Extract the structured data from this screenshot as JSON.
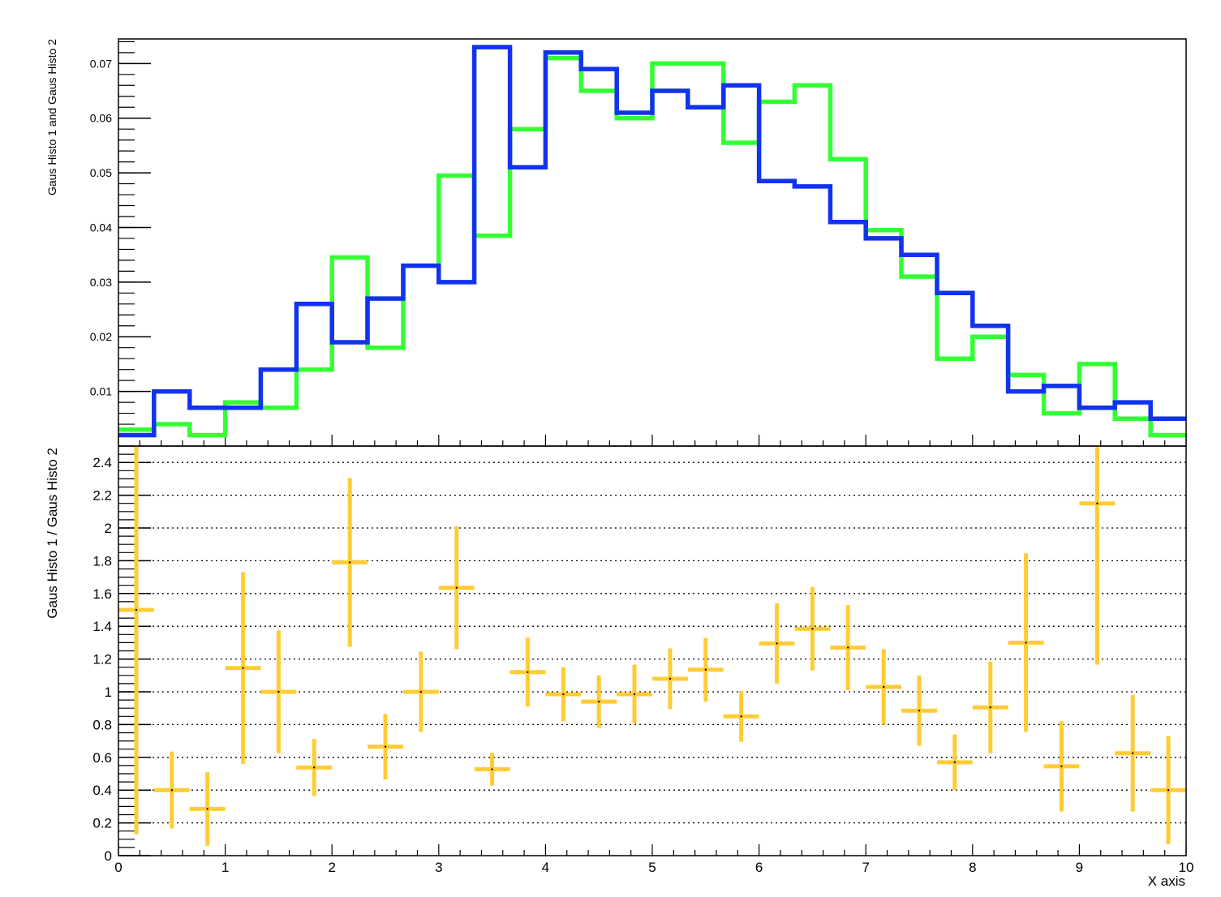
{
  "chart_data": [
    {
      "type": "histogram-step",
      "ylabel": "Gaus Histo 1 and Gaus Histo 2",
      "xlim": [
        0,
        10
      ],
      "ylim": [
        0,
        0.0745
      ],
      "yticks": [
        0.01,
        0.02,
        0.03,
        0.04,
        0.05,
        0.06,
        0.07
      ],
      "ytick_labels": [
        "0.01",
        "0.02",
        "0.03",
        "0.04",
        "0.05",
        "0.06",
        "0.07"
      ],
      "bin_edges": [
        0,
        0.333,
        0.667,
        1,
        1.333,
        1.667,
        2,
        2.333,
        2.667,
        3,
        3.333,
        3.667,
        4,
        4.333,
        4.667,
        5,
        5.333,
        5.667,
        6,
        6.333,
        6.667,
        7,
        7.333,
        7.667,
        8,
        8.333,
        8.667,
        9,
        9.333,
        9.667,
        10
      ],
      "series": [
        {
          "color": "#33ff33",
          "values": [
            0.003,
            0.004,
            0.002,
            0.008,
            0.007,
            0.014,
            0.0345,
            0.018,
            0.033,
            0.0495,
            0.0385,
            0.058,
            0.071,
            0.065,
            0.06,
            0.07,
            0.07,
            0.0555,
            0.063,
            0.066,
            0.0525,
            0.0395,
            0.031,
            0.016,
            0.02,
            0.013,
            0.006,
            0.015,
            0.005,
            0.002
          ]
        },
        {
          "color": "#1133ee",
          "values": [
            0.002,
            0.01,
            0.007,
            0.007,
            0.014,
            0.026,
            0.019,
            0.027,
            0.033,
            0.03,
            0.073,
            0.051,
            0.072,
            0.069,
            0.061,
            0.065,
            0.062,
            0.066,
            0.0485,
            0.0475,
            0.041,
            0.038,
            0.035,
            0.028,
            0.022,
            0.01,
            0.011,
            0.007,
            0.008,
            0.005
          ]
        }
      ]
    },
    {
      "type": "errorbar",
      "ylabel": "Gaus Histo 1 / Gaus Histo 2",
      "xlabel": "X axis",
      "xlim": [
        0,
        10
      ],
      "ylim": [
        0,
        2.5
      ],
      "grid": "y-dotted",
      "color": "#ffcc33",
      "xticks": [
        0,
        1,
        2,
        3,
        4,
        5,
        6,
        7,
        8,
        9,
        10
      ],
      "xtick_labels": [
        "0",
        "1",
        "2",
        "3",
        "4",
        "5",
        "6",
        "7",
        "8",
        "9",
        "10"
      ],
      "yticks": [
        0,
        0.2,
        0.4,
        0.6,
        0.8,
        1,
        1.2,
        1.4,
        1.6,
        1.8,
        2,
        2.2,
        2.4
      ],
      "ytick_labels": [
        "0",
        "0.2",
        "0.4",
        "0.6",
        "0.8",
        "1",
        "1.2",
        "1.4",
        "1.6",
        "1.8",
        "2",
        "2.2",
        "2.4"
      ],
      "x": [
        0.167,
        0.5,
        0.833,
        1.167,
        1.5,
        1.833,
        2.167,
        2.5,
        2.833,
        3.167,
        3.5,
        3.833,
        4.167,
        4.5,
        4.833,
        5.167,
        5.5,
        5.833,
        6.167,
        6.5,
        6.833,
        7.167,
        7.5,
        7.833,
        8.167,
        8.5,
        8.833,
        9.167,
        9.5,
        9.833
      ],
      "y": [
        1.5,
        0.4,
        0.285,
        1.145,
        1.0,
        0.538,
        1.79,
        0.665,
        1.0,
        1.635,
        0.527,
        1.12,
        0.985,
        0.94,
        0.985,
        1.08,
        1.135,
        0.85,
        1.295,
        1.385,
        1.27,
        1.03,
        0.885,
        0.57,
        0.905,
        1.3,
        0.545,
        2.15,
        0.625,
        0.4
      ],
      "yerr": [
        1.37,
        0.235,
        0.225,
        0.585,
        0.375,
        0.175,
        0.515,
        0.2,
        0.245,
        0.375,
        0.1,
        0.21,
        0.165,
        0.16,
        0.18,
        0.185,
        0.195,
        0.155,
        0.245,
        0.255,
        0.26,
        0.23,
        0.215,
        0.17,
        0.28,
        0.545,
        0.275,
        0.985,
        0.355,
        0.33
      ]
    }
  ]
}
